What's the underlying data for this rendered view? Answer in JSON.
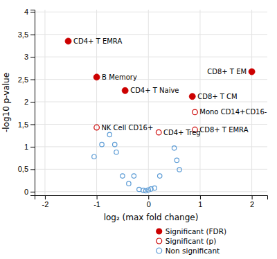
{
  "chart_data": {
    "type": "scatter",
    "xlabel": "log₂ (max fold change)",
    "ylabel": "-log10 p-value",
    "xlim": [
      -2.2,
      2.3
    ],
    "ylim": [
      -0.08,
      4.05
    ],
    "xticks": [
      -2,
      -1,
      0,
      1,
      2
    ],
    "yticks": [
      0,
      {
        "value": 0.5,
        "label": "0,5"
      },
      1,
      {
        "value": 1.5,
        "label": "1,5"
      },
      2,
      {
        "value": 2.5,
        "label": "2,5"
      },
      3,
      {
        "value": 3.5,
        "label": "3,5"
      },
      4
    ],
    "grid": true,
    "legend": "bottom",
    "series": [
      {
        "name": "Significant (FDR)",
        "color": "#cc0000",
        "marker": "circle",
        "x": [
          -1.55,
          -1.0,
          -0.45,
          0.85,
          2.0
        ],
        "values": [
          3.35,
          2.55,
          2.25,
          2.12,
          2.67
        ],
        "labels": [
          "CD4+ T EMRA",
          "B Memory",
          "CD4+ T Naive",
          "CD8+ T CM",
          "CD8+ T EM"
        ]
      },
      {
        "name": "Significant (p)",
        "color": "#cc0000",
        "marker": "circle-open",
        "x": [
          -1.0,
          0.2,
          0.9,
          0.9
        ],
        "values": [
          1.43,
          1.32,
          1.77,
          1.38
        ],
        "labels": [
          "NK Cell CD16+",
          "CD4+ Treg",
          "Mono CD14+CD16-",
          "CD8+ T EMRA"
        ]
      },
      {
        "name": "Non significant",
        "color": "#5b9bd5",
        "marker": "circle-open",
        "x": [
          -1.05,
          -0.9,
          -0.75,
          -0.65,
          -0.62,
          -0.5,
          -0.38,
          -0.28,
          -0.18,
          -0.1,
          -0.05,
          0.0,
          0.05,
          0.12,
          0.22,
          0.5,
          0.55,
          0.6
        ],
        "values": [
          0.78,
          1.05,
          1.27,
          1.05,
          0.88,
          0.35,
          0.18,
          0.35,
          0.05,
          0.03,
          0.02,
          0.04,
          0.06,
          0.08,
          0.35,
          0.97,
          0.7,
          0.49
        ]
      }
    ]
  }
}
